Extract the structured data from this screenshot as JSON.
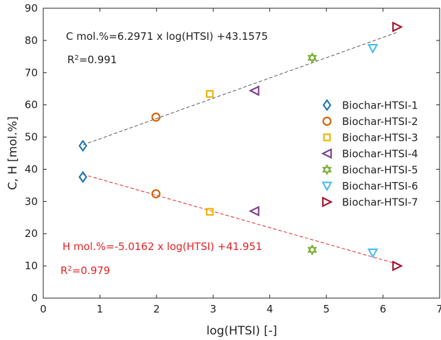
{
  "chart_data": {
    "type": "scatter",
    "xlabel": "log(HTSI) [-]",
    "ylabel": "C, H [mol.%]",
    "xlim": [
      0,
      7
    ],
    "ylim": [
      0,
      90
    ],
    "x_ticks": [
      "0",
      "1",
      "2",
      "3",
      "4",
      "5",
      "6",
      "7"
    ],
    "y_ticks": [
      "0",
      "10",
      "20",
      "30",
      "40",
      "50",
      "60",
      "70",
      "80",
      "90"
    ],
    "grid": false,
    "legend_position": "right",
    "series": [
      {
        "name": "Biochar-HTSI-1",
        "marker": "diamond",
        "color": "#1f77b4",
        "points": [
          {
            "x": 0.7,
            "y": 47.3
          },
          {
            "x": 0.7,
            "y": 37.6
          }
        ]
      },
      {
        "name": "Biochar-HTSI-2",
        "marker": "circle",
        "color": "#d95f02",
        "points": [
          {
            "x": 1.99,
            "y": 56.2
          },
          {
            "x": 1.99,
            "y": 32.4
          }
        ]
      },
      {
        "name": "Biochar-HTSI-3",
        "marker": "square",
        "color": "#f0b400",
        "points": [
          {
            "x": 2.94,
            "y": 63.4
          },
          {
            "x": 2.94,
            "y": 26.8
          }
        ]
      },
      {
        "name": "Biochar-HTSI-4",
        "marker": "triangle-left",
        "color": "#7e3f8f",
        "points": [
          {
            "x": 3.73,
            "y": 64.4
          },
          {
            "x": 3.73,
            "y": 27.0
          }
        ]
      },
      {
        "name": "Biochar-HTSI-5",
        "marker": "hexagram",
        "color": "#77ac30",
        "points": [
          {
            "x": 4.75,
            "y": 74.6
          },
          {
            "x": 4.75,
            "y": 15.0
          }
        ]
      },
      {
        "name": "Biochar-HTSI-6",
        "marker": "triangle-down",
        "color": "#4dbeee",
        "points": [
          {
            "x": 5.82,
            "y": 77.6
          },
          {
            "x": 5.82,
            "y": 14.1
          }
        ]
      },
      {
        "name": "Biochar-HTSI-7",
        "marker": "triangle-right",
        "color": "#a2142f",
        "points": [
          {
            "x": 6.25,
            "y": 84.2
          },
          {
            "x": 6.25,
            "y": 10.0
          }
        ]
      }
    ],
    "fit_lines": [
      {
        "slope": 6.2971,
        "intercept": 43.1575,
        "x_range": [
          0.7,
          6.25
        ],
        "color": "#555555",
        "style": "dashed"
      },
      {
        "slope": -5.0162,
        "intercept": 41.951,
        "x_range": [
          0.7,
          6.25
        ],
        "color": "#e32222",
        "style": "dashed"
      }
    ],
    "annotations": {
      "c_equation": "C mol.%=6.2971 x log(HTSI) +43.1575",
      "c_r2_prefix": "R",
      "c_r2_sup": "2",
      "c_r2_value": "=0.991",
      "h_equation": "H mol.%=-5.0162 x log(HTSI) +41.951",
      "h_r2_prefix": "R",
      "h_r2_sup": "2",
      "h_r2_value": "=0.979",
      "c_color": "#222222",
      "h_color": "#e32222"
    }
  }
}
